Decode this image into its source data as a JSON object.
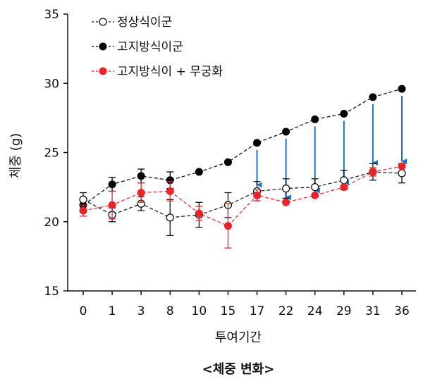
{
  "chart_data": {
    "type": "line",
    "title": "",
    "caption": "<체중 변화>",
    "xlabel": "투여기간",
    "ylabel": "체중 (g)",
    "x_ticks": [
      "0",
      "1",
      "3",
      "8",
      "10",
      "15",
      "17",
      "22",
      "24",
      "29",
      "31",
      "36"
    ],
    "ylim": [
      15,
      35
    ],
    "y_ticks": [
      "15",
      "20",
      "25",
      "30",
      "35"
    ],
    "grid": false,
    "legend_position": "top-left",
    "series": [
      {
        "name": "정상식이군",
        "color": "#111111",
        "marker": "open-circle",
        "values": [
          21.6,
          20.5,
          21.3,
          20.3,
          20.5,
          21.2,
          22.2,
          22.4,
          22.5,
          23.0,
          23.6,
          23.5
        ],
        "errors": [
          0.5,
          0.5,
          0.5,
          1.3,
          0.9,
          0.9,
          0.7,
          0.7,
          0.6,
          0.7,
          0.6,
          0.7
        ]
      },
      {
        "name": "고지방식이군",
        "color": "#000000",
        "marker": "filled-circle",
        "values": [
          21.2,
          22.7,
          23.3,
          23.0,
          23.6,
          24.3,
          25.7,
          26.5,
          27.4,
          27.8,
          29.0,
          29.6
        ],
        "errors": [
          0.5,
          0.5,
          0.5,
          0.6,
          0.0,
          0.0,
          0.0,
          0.0,
          0.0,
          0.0,
          0.0,
          0.0
        ]
      },
      {
        "name": "고지방식이 + 무궁화",
        "color": "#e8242b",
        "marker": "filled-circle",
        "values": [
          20.8,
          21.2,
          22.1,
          22.2,
          20.6,
          19.7,
          21.9,
          21.4,
          21.9,
          22.5,
          23.6,
          24.0
        ],
        "errors": [
          0.4,
          1.0,
          0.7,
          0.7,
          0.5,
          1.6,
          0.4,
          0.0,
          0.0,
          0.0,
          0.3,
          0.0
        ]
      }
    ],
    "arrows": {
      "color": "#1a73c7",
      "x_indices": [
        6,
        7,
        8,
        9,
        10,
        11
      ]
    }
  }
}
